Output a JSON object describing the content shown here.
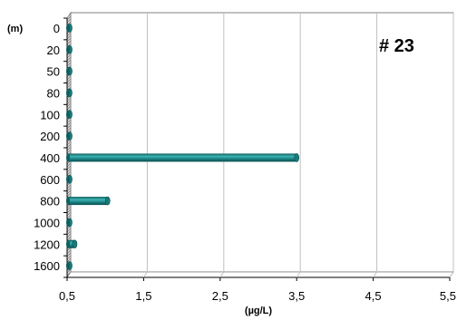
{
  "chart_data": {
    "type": "bar",
    "orientation": "horizontal",
    "title": "# 23",
    "categories": [
      "0",
      "20",
      "50",
      "80",
      "100",
      "200",
      "400",
      "600",
      "800",
      "1000",
      "1200",
      "1600"
    ],
    "values": [
      0.52,
      0.52,
      0.52,
      0.52,
      0.52,
      0.52,
      3.5,
      0.52,
      1.03,
      0.52,
      0.6,
      0.5
    ],
    "xlabel": "(µg/L)",
    "ylabel": "(m)",
    "xlim": [
      0.5,
      5.5
    ],
    "xticks": [
      "0,5",
      "1,5",
      "2,5",
      "3,5",
      "4,5",
      "5,5"
    ],
    "xtick_values": [
      0.5,
      1.5,
      2.5,
      3.5,
      4.5,
      5.5
    ],
    "grid": "vertical",
    "bar_color": "#1f8a8a"
  }
}
